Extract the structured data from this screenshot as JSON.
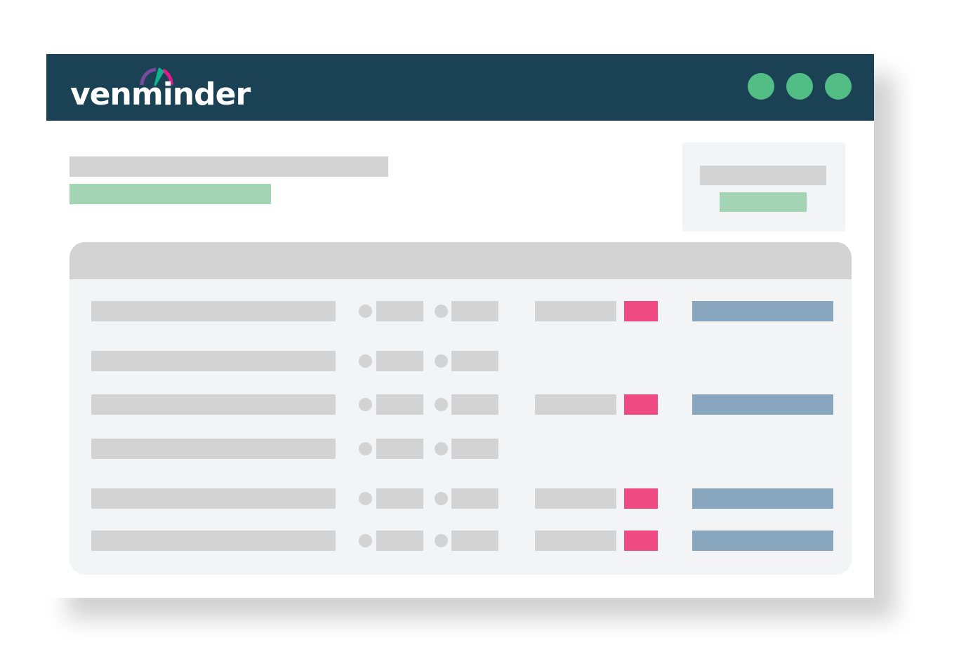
{
  "header": {
    "logo_text": "venminder",
    "window_buttons": [
      "green-dot",
      "green-dot",
      "green-dot"
    ]
  },
  "colors": {
    "header_bg": "#1b4155",
    "window_dot": "#52bd84",
    "placeholder_gray": "#d3d3d3",
    "placeholder_green": "#a3d5b5",
    "status_pink": "#ef4b82",
    "link_blue": "#89a6bf",
    "panel_bg": "#f3f4f6",
    "logo_purple": "#7a4a9f",
    "logo_teal": "#13b28f",
    "logo_pink": "#e6198a"
  },
  "table": {
    "rows": [
      {
        "has_status": true
      },
      {
        "has_status": false
      },
      {
        "has_status": true
      },
      {
        "has_status": false
      },
      {
        "has_status": true
      },
      {
        "has_status": true
      }
    ]
  }
}
